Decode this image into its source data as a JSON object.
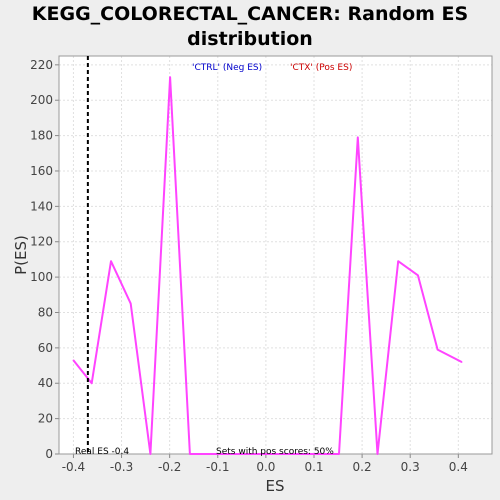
{
  "chart_data": {
    "type": "line",
    "title": "KEGG_COLORECTAL_CANCER: Random ES distribution",
    "xlabel": "ES",
    "ylabel": "P(ES)",
    "xlim": [
      -0.43,
      0.47
    ],
    "ylim": [
      0,
      225
    ],
    "xticks": [
      "-0.4",
      "-0.3",
      "-0.2",
      "-0.1",
      "0.0",
      "0.1",
      "0.2",
      "0.3",
      "0.4"
    ],
    "yticks": [
      "0",
      "20",
      "40",
      "60",
      "80",
      "100",
      "120",
      "140",
      "160",
      "180",
      "200",
      "220"
    ],
    "grid": true,
    "line_color": "#ff44ff",
    "series": [
      {
        "x": [
          -0.4,
          -0.362,
          -0.322,
          -0.281,
          -0.24,
          -0.199,
          -0.158,
          -0.117,
          -0.076,
          -0.035,
          0.006,
          0.047,
          0.088,
          0.129,
          0.152,
          0.191,
          0.232,
          0.275,
          0.316,
          0.357,
          0.407
        ],
        "values": [
          53,
          40,
          109,
          85,
          0,
          213,
          0,
          0,
          0,
          0,
          0,
          0,
          0,
          0,
          0,
          179,
          0,
          109,
          101,
          59,
          52
        ]
      }
    ],
    "real_es": -0.37,
    "legend": [
      {
        "label": "'CTRL' (Neg ES)",
        "color": "#0000cc"
      },
      {
        "label": "'CTX' (Pos ES)",
        "color": "#cc0000"
      }
    ],
    "annotations": {
      "real_es_label": "Real ES -0.4",
      "sets_label": "Sets with pos scores: 50%"
    }
  }
}
